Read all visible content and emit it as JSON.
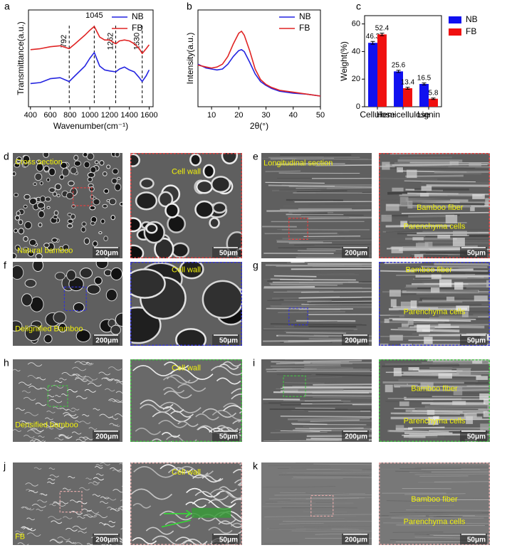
{
  "chart_data": [
    {
      "type": "line",
      "panel": "a",
      "x_label": "Wavenumber(cm⁻¹)",
      "y_label": "Transmittance(a.u.)",
      "x": [
        400,
        500,
        600,
        700,
        792,
        850,
        950,
        1000,
        1045,
        1100,
        1150,
        1200,
        1262,
        1300,
        1350,
        1400,
        1450,
        1500,
        1530,
        1570,
        1600
      ],
      "series": [
        {
          "name": "NB",
          "color": "#2424e0",
          "values": [
            2.4,
            2.5,
            2.9,
            3.0,
            2.6,
            3.2,
            4.2,
            5.0,
            5.6,
            4.2,
            3.8,
            3.7,
            3.6,
            3.9,
            4.1,
            3.8,
            3.6,
            3.0,
            2.6,
            3.2,
            3.8
          ]
        },
        {
          "name": "FB",
          "color": "#e02424",
          "values": [
            5.9,
            6.0,
            6.2,
            6.3,
            6.0,
            6.5,
            7.4,
            7.9,
            8.3,
            7.2,
            6.9,
            6.9,
            6.5,
            6.8,
            6.9,
            6.8,
            6.5,
            6.0,
            5.5,
            6.0,
            6.4
          ]
        }
      ],
      "peaks": [
        792,
        1045,
        1262,
        1530
      ],
      "xlim": [
        380,
        1640
      ],
      "xticks": [
        400,
        600,
        800,
        1000,
        1200,
        1400,
        1600
      ],
      "ylim": [
        0,
        10
      ],
      "legend": "upper-right"
    },
    {
      "type": "line",
      "panel": "b",
      "x_label": "2θ(°)",
      "y_label": "Intensity(a.u.)",
      "x": [
        5,
        8,
        10,
        12,
        14,
        16,
        18,
        20,
        21,
        22,
        24,
        26,
        28,
        30,
        32,
        35,
        40,
        45,
        50
      ],
      "series": [
        {
          "name": "NB",
          "color": "#2424e0",
          "values": [
            4.4,
            4.0,
            3.9,
            3.8,
            3.9,
            4.4,
            5.2,
            5.8,
            5.9,
            5.7,
            4.6,
            3.4,
            2.6,
            2.2,
            1.9,
            1.6,
            1.4,
            1.3,
            1.1
          ]
        },
        {
          "name": "FB",
          "color": "#e02424",
          "values": [
            4.3,
            4.1,
            4.0,
            4.1,
            4.4,
            5.2,
            6.5,
            7.6,
            7.8,
            7.4,
            5.8,
            3.9,
            2.8,
            2.3,
            2.0,
            1.7,
            1.5,
            1.3,
            1.1
          ]
        }
      ],
      "xlim": [
        5,
        50
      ],
      "xticks": [
        10,
        20,
        30,
        40,
        50
      ],
      "ylim": [
        0,
        10
      ],
      "legend": "upper-right"
    },
    {
      "type": "bar",
      "panel": "c",
      "y_label": "Weight(%)",
      "categories": [
        "Cellulose",
        "Hemicellulose",
        "Lignin"
      ],
      "series": [
        {
          "name": "NB",
          "color": "#1010f0",
          "values": [
            46.3,
            25.6,
            16.5
          ],
          "errors": [
            1.0,
            0.8,
            0.7
          ]
        },
        {
          "name": "FB",
          "color": "#f01010",
          "values": [
            52.4,
            13.4,
            5.8
          ],
          "errors": [
            0.9,
            0.7,
            0.5
          ]
        }
      ],
      "ylim": [
        0,
        66
      ],
      "yticks": [
        0,
        20,
        40,
        60
      ],
      "legend": "outside-right"
    }
  ],
  "panels": [
    {
      "label": "d",
      "images": [
        {
          "texts": [
            "Cross section",
            "Natural bamboo"
          ],
          "scale": "200μm"
        },
        {
          "texts": [
            "Cell wall"
          ],
          "scale": "50μm"
        }
      ]
    },
    {
      "label": "e",
      "images": [
        {
          "texts": [
            "Longitudinal section"
          ],
          "scale": "200μm"
        },
        {
          "texts": [
            "Bamboo fiber",
            "Parenchyma cells"
          ],
          "scale": "50μm"
        }
      ]
    },
    {
      "label": "f",
      "images": [
        {
          "texts": [
            "Delignified Bamboo"
          ],
          "scale": "200μm"
        },
        {
          "texts": [
            "Cell wall"
          ],
          "scale": "50μm"
        }
      ]
    },
    {
      "label": "g",
      "images": [
        {
          "texts": [],
          "scale": "200μm"
        },
        {
          "texts": [
            "Bamboo fiber",
            "Parenchyma cells"
          ],
          "scale": "50μm"
        }
      ]
    },
    {
      "label": "h",
      "images": [
        {
          "texts": [
            "Densified bamboo"
          ],
          "scale": "200μm"
        },
        {
          "texts": [
            "Cell wall"
          ],
          "scale": "50μm"
        }
      ]
    },
    {
      "label": "i",
      "images": [
        {
          "texts": [],
          "scale": "200μm"
        },
        {
          "texts": [
            "Bamboo fiber",
            "Parenchyma cells"
          ],
          "scale": "50μm"
        }
      ]
    },
    {
      "label": "j",
      "images": [
        {
          "texts": [
            "FB"
          ],
          "scale": "200μm"
        },
        {
          "texts": [
            "Cell wall"
          ],
          "scale": "50μm"
        }
      ]
    },
    {
      "label": "k",
      "images": [
        {
          "texts": [],
          "scale": "200μm"
        },
        {
          "texts": [
            "Bamboo fiber",
            "Parenchyma cells"
          ],
          "scale": "50μm"
        }
      ]
    }
  ]
}
